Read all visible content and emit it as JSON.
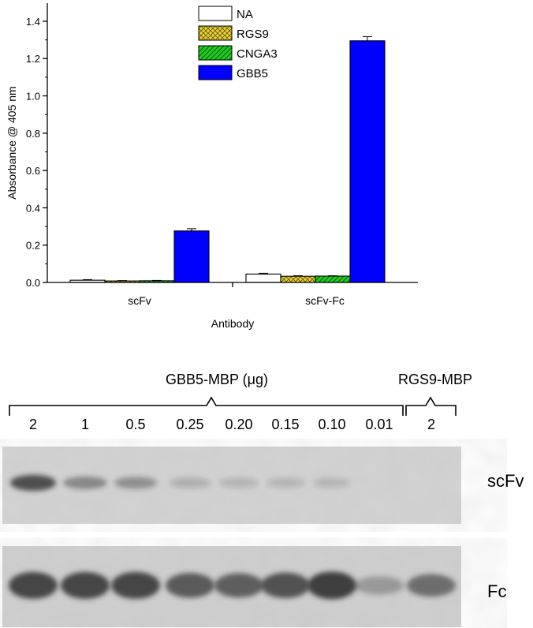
{
  "chart_data": {
    "type": "bar",
    "xlabel": "Antibody",
    "ylabel": "Absorbance @ 405 nm",
    "ylim": [
      0,
      1.5
    ],
    "yticks": [
      "0.0",
      "0.2",
      "0.4",
      "0.6",
      "0.8",
      "1.0",
      "1.2",
      "1.4"
    ],
    "categories": [
      "scFv",
      "scFv-Fc"
    ],
    "legend_position": "top-center",
    "grid": false,
    "series": [
      {
        "name": "NA",
        "values": [
          0.012,
          0.045
        ],
        "errors": [
          0.003,
          0.004
        ],
        "color": "#ffffff",
        "pattern": "none"
      },
      {
        "name": "RGS9",
        "values": [
          0.008,
          0.033
        ],
        "errors": [
          0.002,
          0.003
        ],
        "color": "#e6d23c",
        "pattern": "crosshatch"
      },
      {
        "name": "CNGA3",
        "values": [
          0.009,
          0.034
        ],
        "errors": [
          0.002,
          0.002
        ],
        "color": "#22cc22",
        "pattern": "diagonal"
      },
      {
        "name": "GBB5",
        "values": [
          0.276,
          1.295
        ],
        "errors": [
          0.012,
          0.022
        ],
        "color": "#0000ff",
        "pattern": "none"
      }
    ]
  },
  "blot": {
    "group1_label": "GBB5-MBP (μg)",
    "group2_label": "RGS9-MBP",
    "lane_labels": [
      "2",
      "1",
      "0.5",
      "0.25",
      "0.20",
      "0.15",
      "0.10",
      "0.01",
      "2"
    ],
    "rows": [
      {
        "label": "scFv",
        "band_intensity": [
          0.75,
          0.35,
          0.28,
          0.06,
          0.03,
          0.02,
          0.02,
          0.0,
          0.0
        ]
      },
      {
        "label": "Fc",
        "band_intensity": [
          0.8,
          0.8,
          0.8,
          0.65,
          0.62,
          0.7,
          0.85,
          0.2,
          0.5
        ]
      }
    ]
  }
}
